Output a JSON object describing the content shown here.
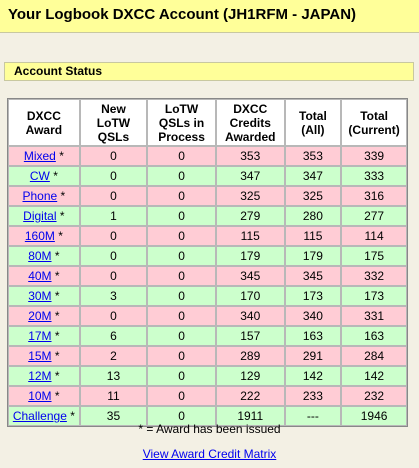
{
  "page": {
    "title": "Your Logbook DXCC Account (JH1RFM - JAPAN)",
    "section_title": "Account Status",
    "footnote": "* = Award has been issued",
    "matrix_link": "View Award Credit Matrix"
  },
  "table": {
    "headers": [
      [
        "DXCC",
        "Award"
      ],
      [
        "New",
        "LoTW",
        "QSLs"
      ],
      [
        "LoTW",
        "QSLs in",
        "Process"
      ],
      [
        "DXCC",
        "Credits",
        "Awarded"
      ],
      [
        "Total",
        "(All)"
      ],
      [
        "Total",
        "(Current)"
      ]
    ],
    "rows": [
      {
        "award": "Mixed",
        "star": "*",
        "new": "0",
        "process": "0",
        "credits": "353",
        "total_all": "353",
        "total_current": "339",
        "color": "pink"
      },
      {
        "award": "CW",
        "star": "*",
        "new": "0",
        "process": "0",
        "credits": "347",
        "total_all": "347",
        "total_current": "333",
        "color": "green"
      },
      {
        "award": "Phone",
        "star": "*",
        "new": "0",
        "process": "0",
        "credits": "325",
        "total_all": "325",
        "total_current": "316",
        "color": "pink"
      },
      {
        "award": "Digital",
        "star": "*",
        "new": "1",
        "process": "0",
        "credits": "279",
        "total_all": "280",
        "total_current": "277",
        "color": "green"
      },
      {
        "award": "160M",
        "star": "*",
        "new": "0",
        "process": "0",
        "credits": "115",
        "total_all": "115",
        "total_current": "114",
        "color": "pink"
      },
      {
        "award": "80M",
        "star": "*",
        "new": "0",
        "process": "0",
        "credits": "179",
        "total_all": "179",
        "total_current": "175",
        "color": "green"
      },
      {
        "award": "40M",
        "star": "*",
        "new": "0",
        "process": "0",
        "credits": "345",
        "total_all": "345",
        "total_current": "332",
        "color": "pink"
      },
      {
        "award": "30M",
        "star": "*",
        "new": "3",
        "process": "0",
        "credits": "170",
        "total_all": "173",
        "total_current": "173",
        "color": "green"
      },
      {
        "award": "20M",
        "star": "*",
        "new": "0",
        "process": "0",
        "credits": "340",
        "total_all": "340",
        "total_current": "331",
        "color": "pink"
      },
      {
        "award": "17M",
        "star": "*",
        "new": "6",
        "process": "0",
        "credits": "157",
        "total_all": "163",
        "total_current": "163",
        "color": "green"
      },
      {
        "award": "15M",
        "star": "*",
        "new": "2",
        "process": "0",
        "credits": "289",
        "total_all": "291",
        "total_current": "284",
        "color": "pink"
      },
      {
        "award": "12M",
        "star": "*",
        "new": "13",
        "process": "0",
        "credits": "129",
        "total_all": "142",
        "total_current": "142",
        "color": "green"
      },
      {
        "award": "10M",
        "star": "*",
        "new": "11",
        "process": "0",
        "credits": "222",
        "total_all": "233",
        "total_current": "232",
        "color": "pink"
      },
      {
        "award": "Challenge",
        "star": "*",
        "new": "35",
        "process": "0",
        "credits": "1911",
        "total_all": "---",
        "total_current": "1946",
        "color": "green"
      }
    ]
  },
  "colors": {
    "title_bg": "#ffff99",
    "page_bg": "#f3f0e4",
    "pink_row": "#ffccd5",
    "green_row": "#ccffcc",
    "link": "#0000ee"
  }
}
